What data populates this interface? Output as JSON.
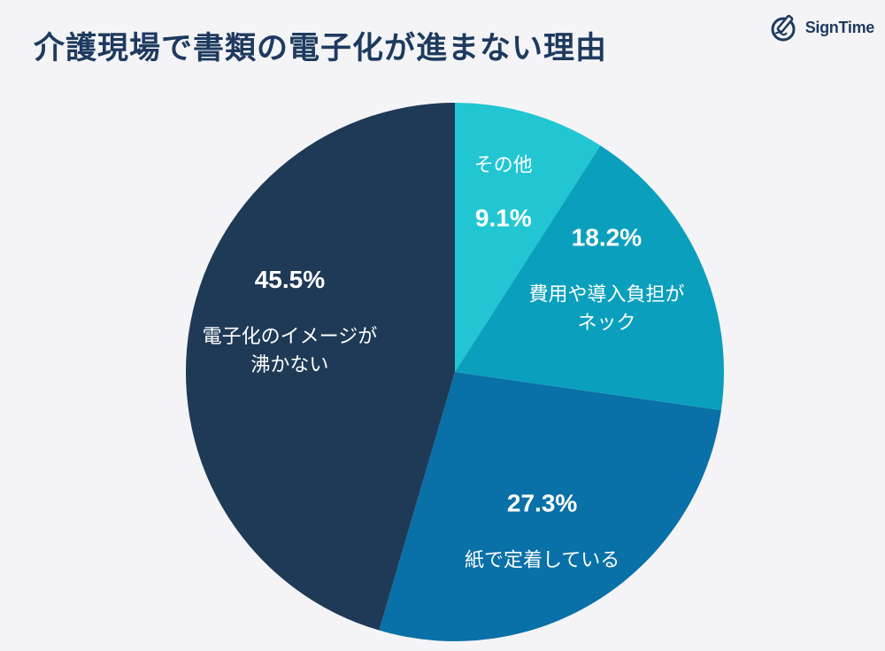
{
  "header": {
    "title": "介護現場で書類の電子化が進まない理由",
    "brand": "SignTime"
  },
  "colors": {
    "title": "#1e3a5f",
    "background": "#f4f4f6"
  },
  "chart_data": {
    "type": "pie",
    "title": "介護現場で書類の電子化が進まない理由",
    "start": "top",
    "direction": "clockwise",
    "slices": [
      {
        "label_lines": [
          "その他"
        ],
        "value": 9.1,
        "value_label": "9.1%",
        "color": "#22c6d2"
      },
      {
        "label_lines": [
          "費用や導入負担が",
          "ネック"
        ],
        "value": 18.2,
        "value_label": "18.2%",
        "color": "#0aa0bd"
      },
      {
        "label_lines": [
          "紙で定着している"
        ],
        "value": 27.3,
        "value_label": "27.3%",
        "color": "#0970a8"
      },
      {
        "label_lines": [
          "電子化のイメージが",
          "沸かない"
        ],
        "value": 45.5,
        "value_label": "45.5%",
        "color": "#1f3a57"
      }
    ]
  }
}
